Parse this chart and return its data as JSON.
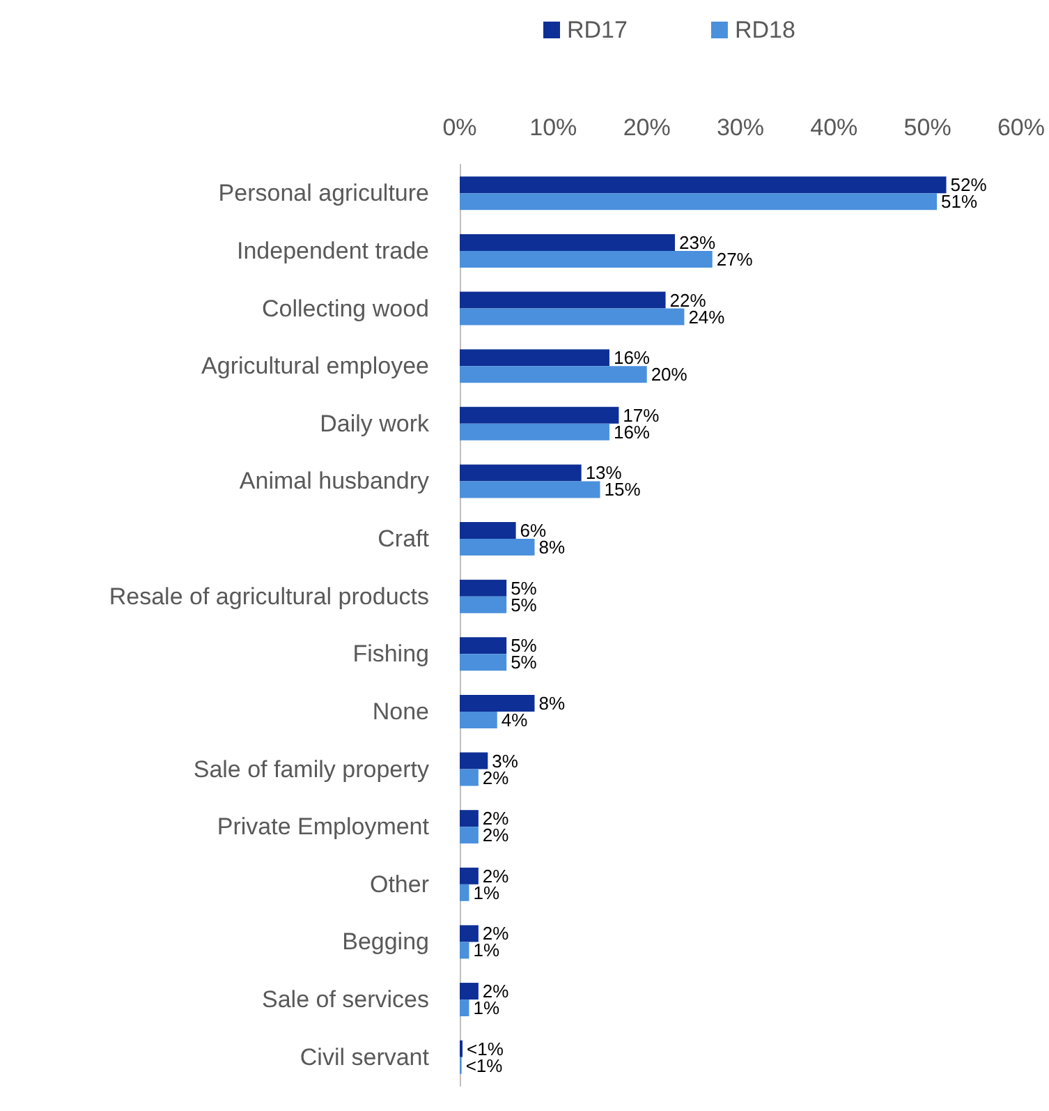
{
  "chart_data": {
    "type": "bar",
    "orientation": "horizontal",
    "categories": [
      "Personal agriculture",
      "Independent trade",
      "Collecting wood",
      "Agricultural employee",
      "Daily work",
      "Animal husbandry",
      "Craft",
      "Resale of agricultural products",
      "Fishing",
      "None",
      "Sale of family property",
      "Private Employment",
      "Other",
      "Begging",
      "Sale of services",
      "Civil servant"
    ],
    "series": [
      {
        "name": "RD17",
        "color": "#0e2f95",
        "values": [
          52,
          23,
          22,
          16,
          17,
          13,
          6,
          5,
          5,
          8,
          3,
          2,
          2,
          2,
          2,
          0.3
        ],
        "value_labels": [
          "52%",
          "23%",
          "22%",
          "16%",
          "17%",
          "13%",
          "6%",
          "5%",
          "5%",
          "8%",
          "3%",
          "2%",
          "2%",
          "2%",
          "2%",
          "<1%"
        ]
      },
      {
        "name": "RD18",
        "color": "#4a90dc",
        "values": [
          51,
          27,
          24,
          20,
          16,
          15,
          8,
          5,
          5,
          4,
          2,
          2,
          1,
          1,
          1,
          0.2
        ],
        "value_labels": [
          "51%",
          "27%",
          "24%",
          "20%",
          "16%",
          "15%",
          "8%",
          "5%",
          "5%",
          "4%",
          "2%",
          "2%",
          "1%",
          "1%",
          "1%",
          "<1%"
        ]
      }
    ],
    "xlim": [
      0,
      60
    ],
    "xticks": [
      {
        "value": 0,
        "label": "0%"
      },
      {
        "value": 10,
        "label": "10%"
      },
      {
        "value": 20,
        "label": "20%"
      },
      {
        "value": 30,
        "label": "30%"
      },
      {
        "value": 40,
        "label": "40%"
      },
      {
        "value": 50,
        "label": "50%"
      },
      {
        "value": 60,
        "label": "60%"
      }
    ],
    "legend": "top"
  }
}
